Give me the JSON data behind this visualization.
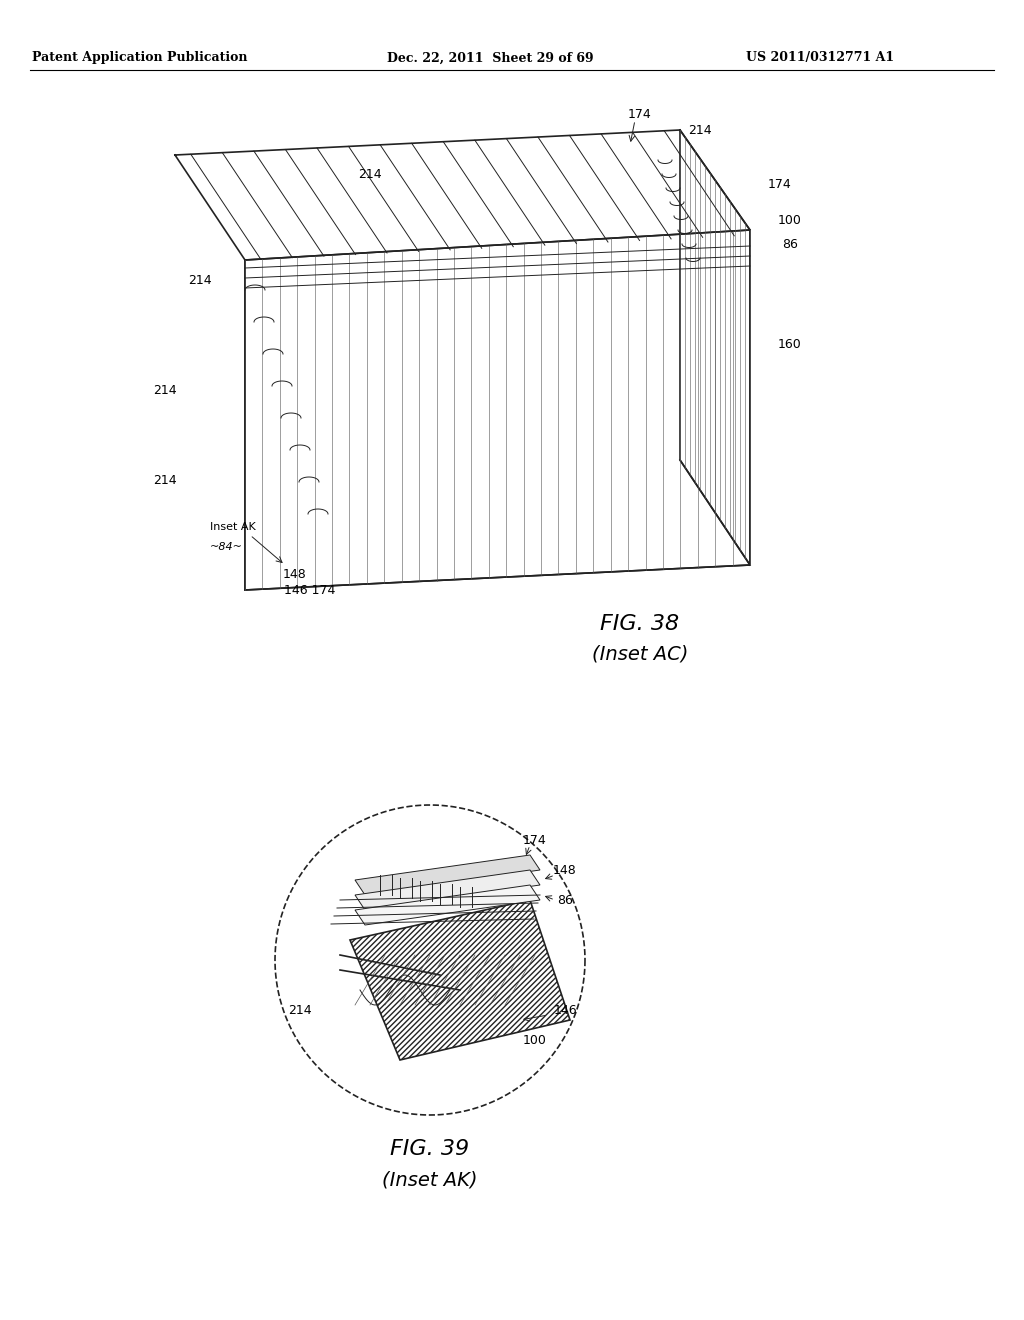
{
  "bg_color": "#ffffff",
  "header_left": "Patent Application Publication",
  "header_mid": "Dec. 22, 2011  Sheet 29 of 69",
  "header_right": "US 2011/0312771 A1",
  "fig38_caption": "FIG. 38",
  "fig38_subcaption": "(Inset AC)",
  "fig39_caption": "FIG. 39",
  "fig39_subcaption": "(Inset AK)"
}
